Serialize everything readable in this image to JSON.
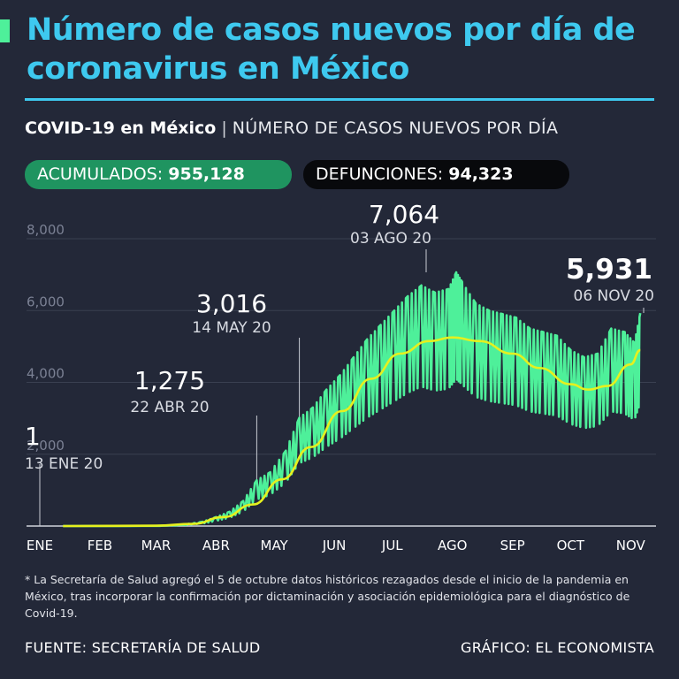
{
  "header": {
    "title": "Número de casos nuevos por día de coronavirus en México",
    "subtitle_bold": "COVID-19 en México",
    "subtitle_sep": "|",
    "subtitle_rest": "NÚMERO DE CASOS NUEVOS POR DÍA"
  },
  "stats": {
    "acumulados_label": "ACUMULADOS:",
    "acumulados_value": "955,128",
    "defunciones_label": "DEFUNCIONES:",
    "defunciones_value": "94,323"
  },
  "colors": {
    "background": "#232838",
    "title": "#3ec9ef",
    "daily_line": "#4ef09a",
    "trend_line": "#e6f01e",
    "pill_green": "#1f9460",
    "pill_black": "#08090c"
  },
  "chart_data": {
    "type": "line",
    "x_ticks": [
      "ENE",
      "FEB",
      "MAR",
      "ABR",
      "MAY",
      "JUN",
      "JUL",
      "AGO",
      "SEP",
      "OCT",
      "NOV"
    ],
    "y_ticks": [
      2000,
      4000,
      6000,
      8000
    ],
    "y_tick_labels": [
      "2,000",
      "4,000",
      "6,000",
      "8,000"
    ],
    "ylim": [
      0,
      8000
    ],
    "grid": true,
    "annotations": [
      {
        "value": "1",
        "date": "13 ENE 20",
        "x": "2020-01-13",
        "y": 1
      },
      {
        "value": "1,275",
        "date": "22 ABR 20",
        "x": "2020-04-22",
        "y": 1275
      },
      {
        "value": "3,016",
        "date": "14 MAY 20",
        "x": "2020-05-14",
        "y": 3016
      },
      {
        "value": "7,064",
        "date": "03 AGO 20",
        "x": "2020-08-03",
        "y": 7064
      },
      {
        "value": "5,931",
        "date": "06 NOV 20",
        "x": "2020-11-06",
        "y": 5931
      }
    ],
    "series": [
      {
        "style": "daily",
        "points": [
          [
            "2020-01-13",
            1
          ],
          [
            "2020-03-01",
            5
          ],
          [
            "2020-03-15",
            40
          ],
          [
            "2020-03-25",
            120
          ],
          [
            "2020-04-01",
            250
          ],
          [
            "2020-04-08",
            400
          ],
          [
            "2020-04-15",
            700
          ],
          [
            "2020-04-22",
            1275
          ],
          [
            "2020-04-29",
            1500
          ],
          [
            "2020-05-07",
            2100
          ],
          [
            "2020-05-14",
            3016
          ],
          [
            "2020-05-21",
            3300
          ],
          [
            "2020-05-28",
            3800
          ],
          [
            "2020-06-04",
            4200
          ],
          [
            "2020-06-11",
            4700
          ],
          [
            "2020-06-18",
            5200
          ],
          [
            "2020-06-25",
            5600
          ],
          [
            "2020-07-02",
            6000
          ],
          [
            "2020-07-09",
            6400
          ],
          [
            "2020-07-16",
            6700
          ],
          [
            "2020-07-23",
            6500
          ],
          [
            "2020-07-30",
            6600
          ],
          [
            "2020-08-03",
            7064
          ],
          [
            "2020-08-06",
            6800
          ],
          [
            "2020-08-13",
            6200
          ],
          [
            "2020-08-20",
            6000
          ],
          [
            "2020-08-27",
            5900
          ],
          [
            "2020-09-03",
            5800
          ],
          [
            "2020-09-10",
            5500
          ],
          [
            "2020-09-17",
            5400
          ],
          [
            "2020-09-24",
            5300
          ],
          [
            "2020-10-01",
            4900
          ],
          [
            "2020-10-08",
            4700
          ],
          [
            "2020-10-15",
            4800
          ],
          [
            "2020-10-22",
            5500
          ],
          [
            "2020-10-29",
            5400
          ],
          [
            "2020-11-03",
            5100
          ],
          [
            "2020-11-06",
            5931
          ]
        ]
      },
      {
        "style": "trend",
        "points": [
          [
            "2020-01-13",
            0
          ],
          [
            "2020-03-01",
            10
          ],
          [
            "2020-03-20",
            60
          ],
          [
            "2020-04-05",
            250
          ],
          [
            "2020-04-20",
            600
          ],
          [
            "2020-05-05",
            1300
          ],
          [
            "2020-05-20",
            2200
          ],
          [
            "2020-06-05",
            3200
          ],
          [
            "2020-06-20",
            4100
          ],
          [
            "2020-07-05",
            4800
          ],
          [
            "2020-07-20",
            5150
          ],
          [
            "2020-08-01",
            5250
          ],
          [
            "2020-08-15",
            5150
          ],
          [
            "2020-09-01",
            4800
          ],
          [
            "2020-09-15",
            4400
          ],
          [
            "2020-10-01",
            3950
          ],
          [
            "2020-10-10",
            3800
          ],
          [
            "2020-10-20",
            3900
          ],
          [
            "2020-11-01",
            4500
          ],
          [
            "2020-11-06",
            4900
          ]
        ]
      }
    ]
  },
  "footer": {
    "footnote": "* La Secretaría de Salud agregó el 5 de octubre datos históricos rezagados desde el inicio de la pandemia en México, tras incorporar la confirmación por dictaminación y asociación epidemiológica para el diagnóstico de Covid-19.",
    "source": "FUENTE: SECRETARÍA DE SALUD",
    "credit": "GRÁFICO: EL ECONOMISTA"
  }
}
